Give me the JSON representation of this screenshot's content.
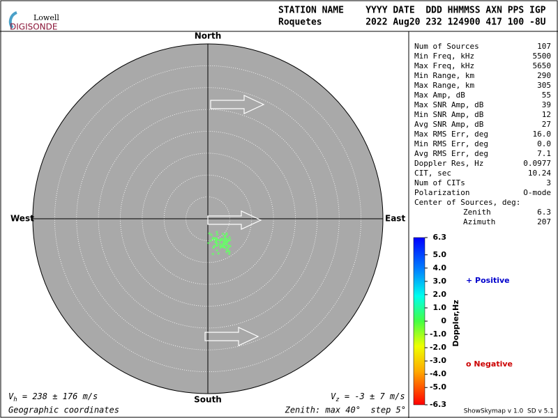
{
  "logo": {
    "top": "Lowell",
    "bottom": "DIGISONDE"
  },
  "header": {
    "line1": "STATION NAME    YYYY DATE  DDD HHMMSS AXN PPS IGP",
    "line2": "Roquetes        2022 Aug20 232 124900 417 100 -8U"
  },
  "compass": {
    "north": "North",
    "south": "South",
    "east": "East",
    "west": "West"
  },
  "stats": {
    "rows": [
      [
        "Num of Sources",
        "107"
      ],
      [
        "Min Freq, kHz",
        "5500"
      ],
      [
        "Max Freq, kHz",
        "5650"
      ],
      [
        "Min Range, km",
        "290"
      ],
      [
        "Max Range, km",
        "305"
      ],
      [
        "Max Amp, dB",
        "55"
      ],
      [
        "Max SNR Amp, dB",
        "39"
      ],
      [
        "Min SNR Amp, dB",
        "12"
      ],
      [
        "Avg SNR Amp, dB",
        "27"
      ],
      [
        "Max RMS Err, deg",
        "16.0"
      ],
      [
        "Min RMS Err, deg",
        "0.0"
      ],
      [
        "Avg RMS Err, deg",
        "7.1"
      ],
      [
        "Doppler Res, Hz",
        "0.0977"
      ],
      [
        "CIT, sec",
        "10.24"
      ],
      [
        "Num of CITs",
        "3"
      ],
      [
        "Polarization",
        "O-mode"
      ]
    ],
    "center_title": "Center of Sources, deg:",
    "center_rows": [
      [
        "Zenith",
        "6.3"
      ],
      [
        "Azimuth",
        "207"
      ]
    ]
  },
  "colorbar": {
    "label": "Doppler,Hz",
    "lim": [
      -6.3,
      6.3
    ],
    "ticks": [
      6.3,
      {
        "value": 5,
        "label": "5.0"
      },
      {
        "value": 4,
        "label": "4.0"
      },
      {
        "value": 3,
        "label": "3.0"
      },
      {
        "value": 2,
        "label": "2.0"
      },
      {
        "value": 1,
        "label": "1.0"
      },
      0,
      {
        "value": -1,
        "label": "-1.0"
      },
      {
        "value": -2,
        "label": "-2.0"
      },
      {
        "value": -3,
        "label": "-3.0"
      },
      {
        "value": -4,
        "label": "-4.0"
      },
      {
        "value": -5,
        "label": "-5.0"
      },
      -6.3
    ]
  },
  "legend": {
    "positive": "+ Positive",
    "negative": "o Negative"
  },
  "footer": {
    "vh_symbol": "V",
    "vh_sub": "h",
    "vh_text": " = 238 ± 176 m/s",
    "vz_symbol": "V",
    "vz_sub": "z",
    "vz_text": " = -3 ± 7 m/s",
    "coords": "Geographic coordinates",
    "zenith": "Zenith: max 40°  step 5°",
    "version": "ShowSkymap v 1.0  SD v 5.1"
  }
}
